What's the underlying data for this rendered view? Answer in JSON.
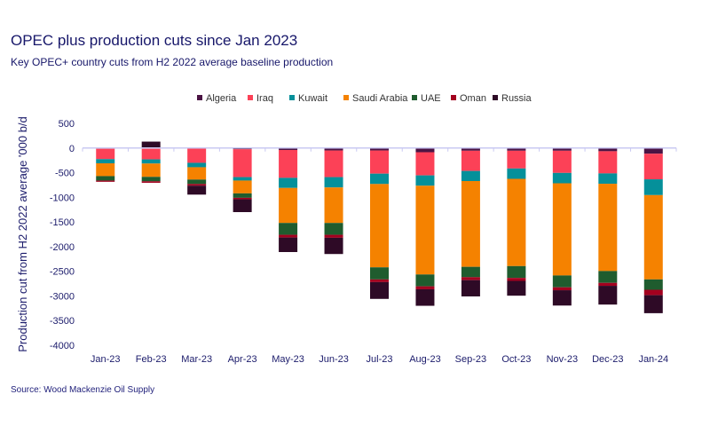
{
  "title": "OPEC plus production cuts since Jan 2023",
  "subtitle": "Key OPEC+ country  cuts from  H2 2022  average baseline production",
  "source": "Source:  Wood Mackenzie Oil Supply",
  "chart_data": {
    "type": "bar",
    "stacked": true,
    "ylabel": "Production cut from H2 2022 average '000 b/d",
    "xlabel": "",
    "ylim": [
      -4000,
      500
    ],
    "yticks": [
      500,
      0,
      -500,
      -1000,
      -1500,
      -2000,
      -2500,
      -3000,
      -3500,
      -4000
    ],
    "grid": false,
    "legend_position": "top",
    "categories": [
      "Jan-23",
      "Feb-23",
      "Mar-23",
      "Apr-23",
      "May-23",
      "Jun-23",
      "Jul-23",
      "Aug-23",
      "Sep-23",
      "Oct-23",
      "Nov-23",
      "Dec-23",
      "Jan-24"
    ],
    "series": [
      {
        "name": "Algeria",
        "color": "#4b1444",
        "values": [
          -15,
          -15,
          0,
          -25,
          -40,
          -50,
          -50,
          -85,
          -55,
          -55,
          -55,
          -65,
          -115
        ]
      },
      {
        "name": "Iraq",
        "color": "#fc4157",
        "values": [
          -210,
          -215,
          -300,
          -565,
          -565,
          -540,
          -470,
          -470,
          -410,
          -360,
          -450,
          -450,
          -520
        ]
      },
      {
        "name": "Kuwait",
        "color": "#05909a",
        "values": [
          -85,
          -85,
          -90,
          -70,
          -205,
          -210,
          -210,
          -210,
          -205,
          -210,
          -210,
          -210,
          -320
        ]
      },
      {
        "name": "Saudi Arabia",
        "color": "#f58200",
        "values": [
          -260,
          -270,
          -250,
          -260,
          -710,
          -720,
          -1690,
          -1800,
          -1740,
          -1770,
          -1870,
          -1770,
          -1710
        ]
      },
      {
        "name": "UAE",
        "color": "#1f5c2e",
        "values": [
          -90,
          -90,
          -90,
          -90,
          -240,
          -240,
          -245,
          -240,
          -210,
          -240,
          -240,
          -240,
          -210
        ]
      },
      {
        "name": "Oman",
        "color": "#a3001f",
        "values": [
          -25,
          -30,
          -35,
          -30,
          -55,
          -60,
          -55,
          -60,
          -60,
          -60,
          -60,
          -60,
          -110
        ]
      },
      {
        "name": "Russia",
        "color": "#2e0a26",
        "values": [
          0,
          130,
          -180,
          -260,
          -295,
          -330,
          -340,
          -335,
          -330,
          -300,
          -310,
          -380,
          -365
        ]
      }
    ]
  }
}
